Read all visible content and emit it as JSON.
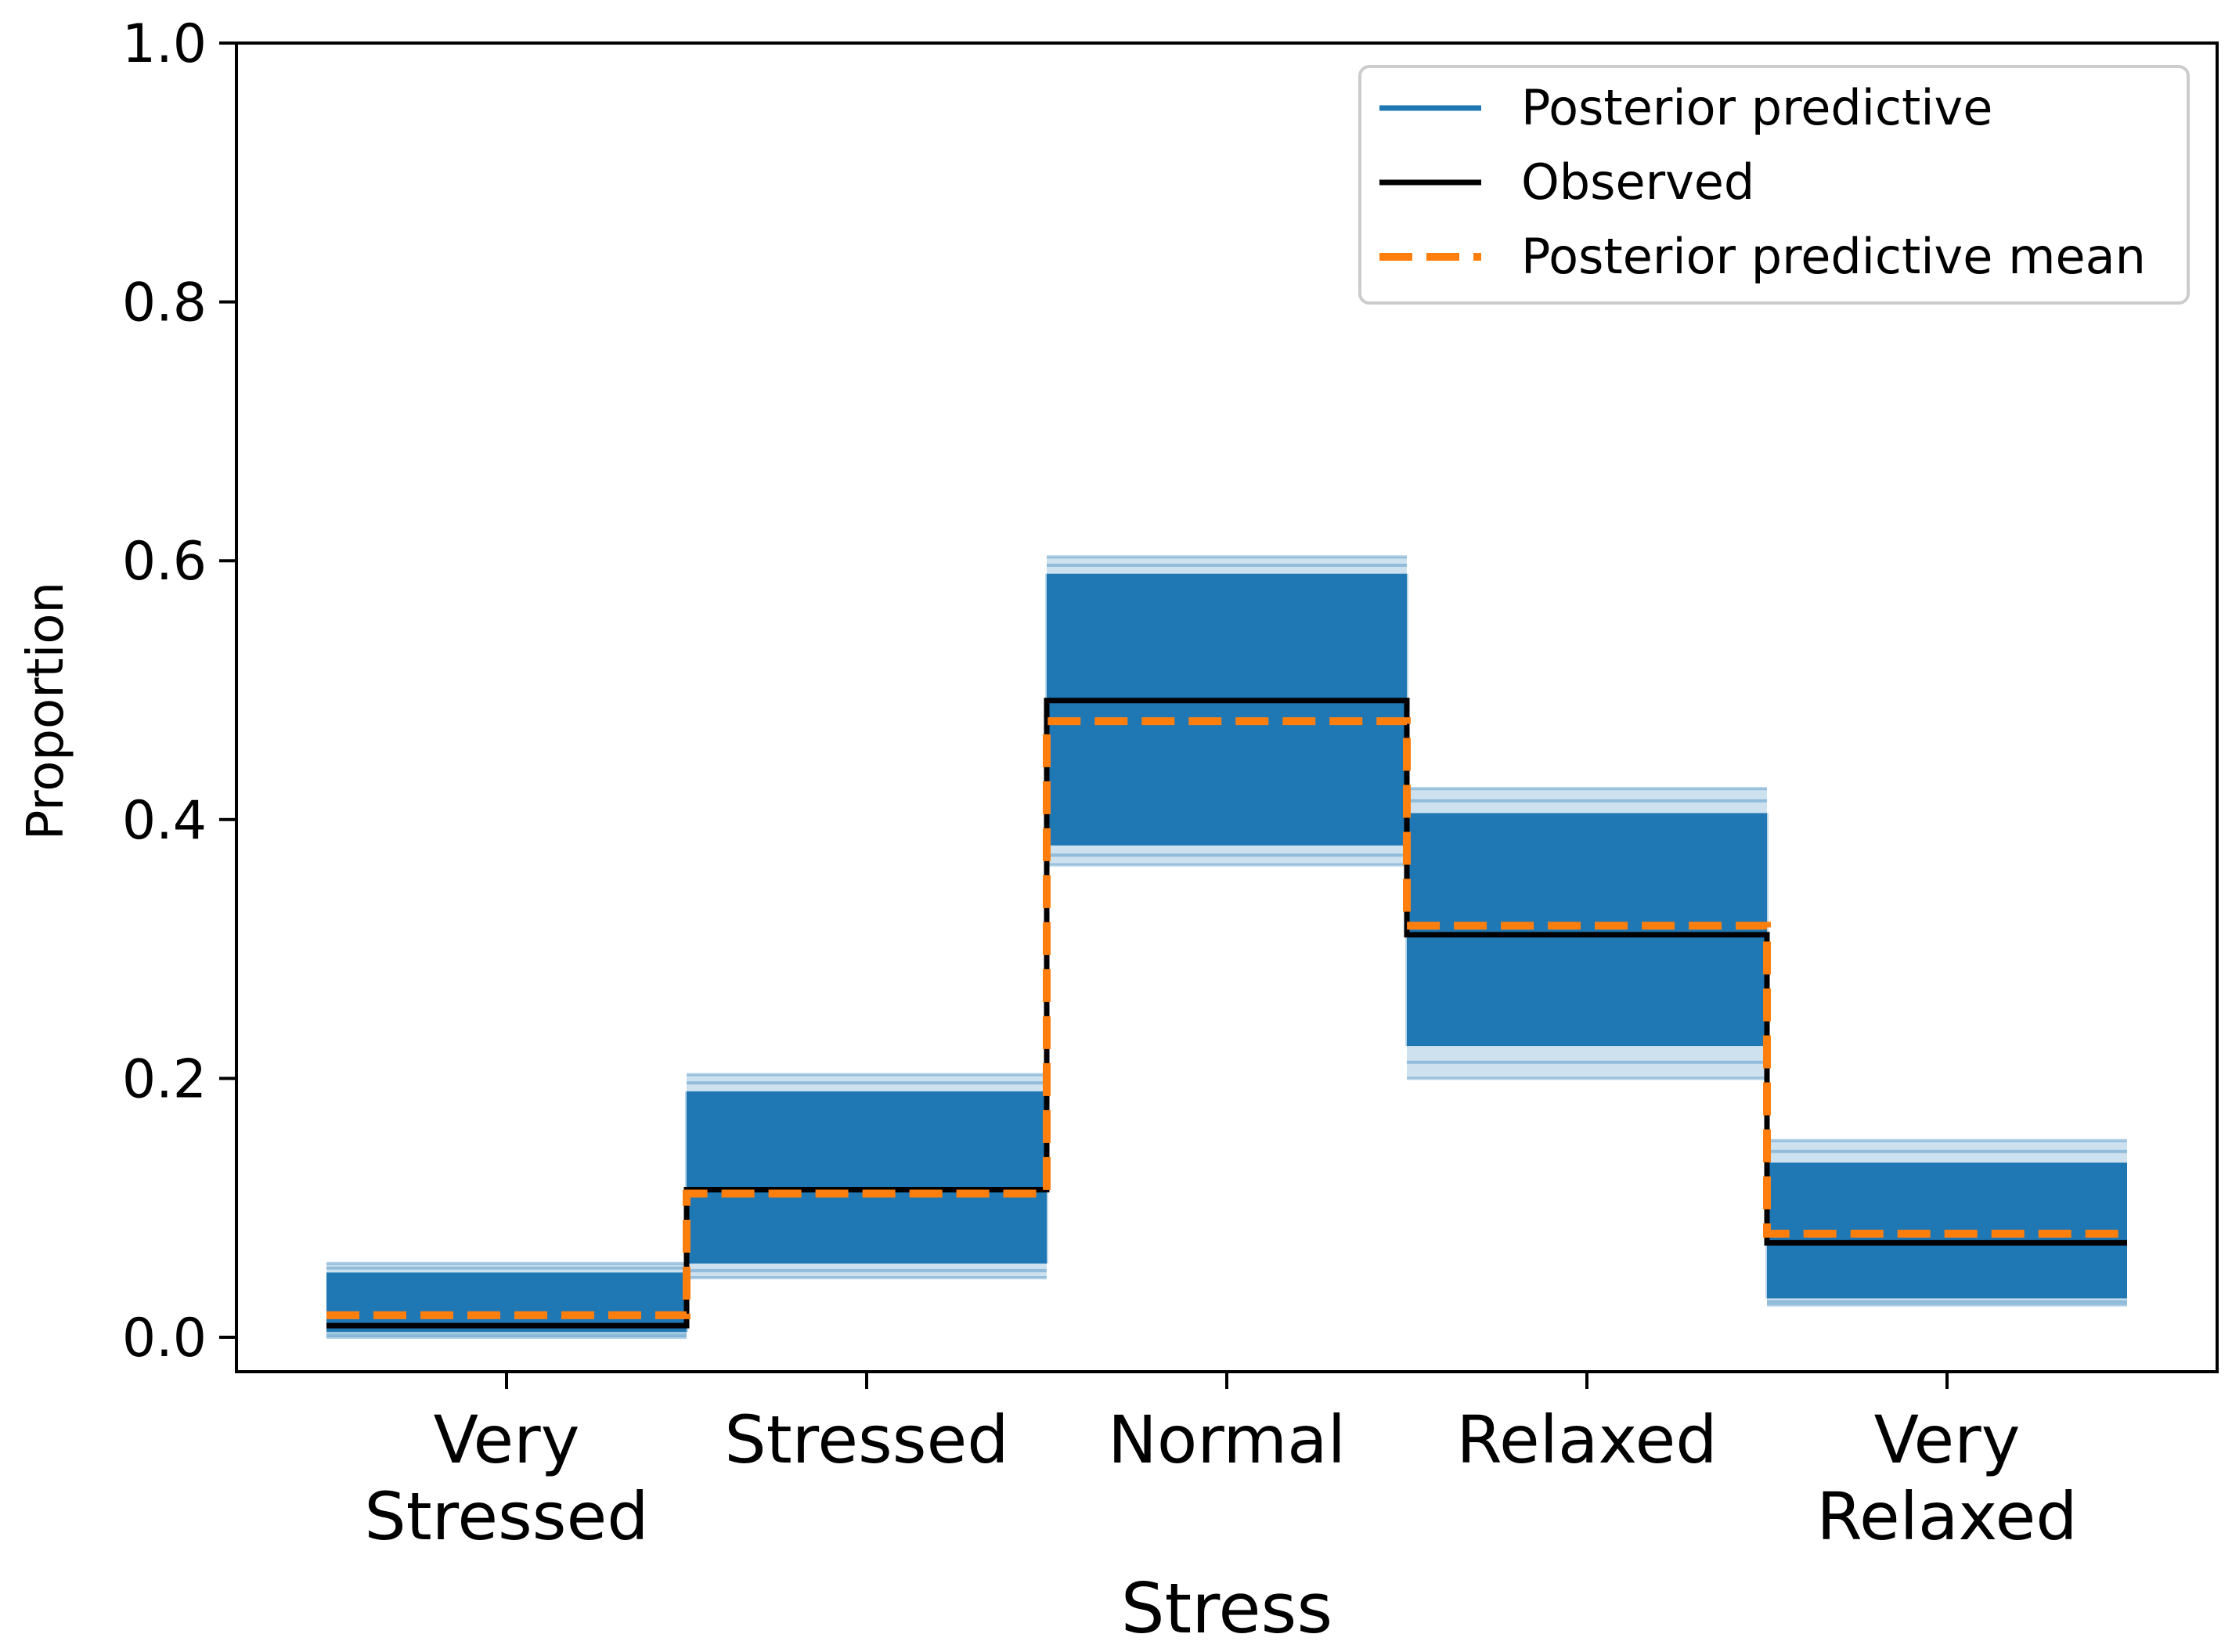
{
  "chart_data": {
    "type": "line",
    "subtype": "step",
    "title": "",
    "xlabel": "Stress",
    "ylabel": "Proportion",
    "ylim": [
      0.0,
      1.0
    ],
    "yticks": [
      "0.0",
      "0.2",
      "0.4",
      "0.6",
      "0.8",
      "1.0"
    ],
    "ytick_values": [
      0.0,
      0.2,
      0.4,
      0.6,
      0.8,
      1.0
    ],
    "categories": [
      [
        "Very",
        "Stressed"
      ],
      [
        "Stressed"
      ],
      [
        "Normal"
      ],
      [
        "Relaxed"
      ],
      [
        "Very",
        "Relaxed"
      ]
    ],
    "grid": false,
    "legend_position": "top-right",
    "series": [
      {
        "name": "Posterior predictive",
        "color": "#1f77b4",
        "style": "solid",
        "bands": [
          {
            "core": [
              0.004,
              0.05
            ],
            "faint": [
              0.0,
              0.057
            ]
          },
          {
            "core": [
              0.057,
              0.19
            ],
            "faint": [
              0.046,
              0.203
            ]
          },
          {
            "core": [
              0.38,
              0.59
            ],
            "faint": [
              0.365,
              0.603
            ]
          },
          {
            "core": [
              0.225,
              0.405
            ],
            "faint": [
              0.2,
              0.424
            ]
          },
          {
            "core": [
              0.03,
              0.135
            ],
            "faint": [
              0.025,
              0.152
            ]
          }
        ]
      },
      {
        "name": "Observed",
        "color": "#000000",
        "style": "solid",
        "values": [
          0.009,
          0.114,
          0.492,
          0.311,
          0.073
        ]
      },
      {
        "name": "Posterior predictive mean",
        "color": "#ff7f0e",
        "style": "dashed",
        "values": [
          0.017,
          0.111,
          0.476,
          0.318,
          0.08
        ]
      }
    ]
  }
}
